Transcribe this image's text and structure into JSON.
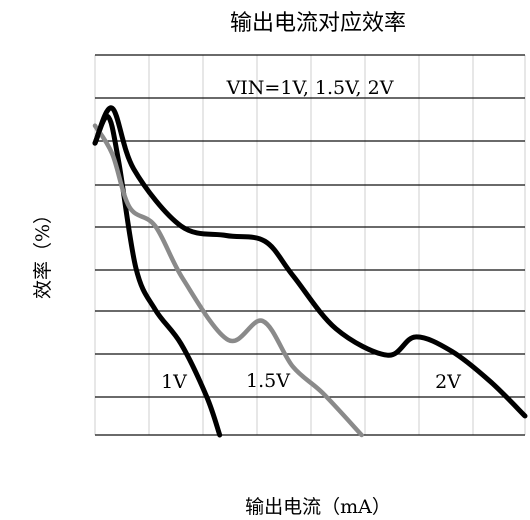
{
  "chart_data": {
    "type": "line",
    "title": "输出电流对应效率",
    "xlabel": "输出电流（mA）",
    "ylabel": "效率（%）",
    "legend_text": "VIN=1V, 1.5V, 2V",
    "grid": true,
    "series": [
      {
        "name": "1V",
        "color": "#000000",
        "points": [
          [
            0.0,
            0.768
          ],
          [
            0.03,
            0.838
          ],
          [
            0.055,
            0.72
          ],
          [
            0.095,
            0.44
          ],
          [
            0.14,
            0.33
          ],
          [
            0.2,
            0.24
          ],
          [
            0.26,
            0.1
          ],
          [
            0.29,
            0.0
          ]
        ]
      },
      {
        "name": "1.5V",
        "color": "#8a8a8a",
        "points": [
          [
            0.0,
            0.814
          ],
          [
            0.04,
            0.74
          ],
          [
            0.08,
            0.6
          ],
          [
            0.14,
            0.55
          ],
          [
            0.205,
            0.41
          ],
          [
            0.31,
            0.25
          ],
          [
            0.39,
            0.3
          ],
          [
            0.46,
            0.18
          ],
          [
            0.53,
            0.11
          ],
          [
            0.62,
            0.0
          ]
        ]
      },
      {
        "name": "2V",
        "color": "#000000",
        "points": [
          [
            0.0,
            0.768
          ],
          [
            0.04,
            0.86
          ],
          [
            0.09,
            0.7
          ],
          [
            0.2,
            0.55
          ],
          [
            0.305,
            0.525
          ],
          [
            0.395,
            0.51
          ],
          [
            0.46,
            0.42
          ],
          [
            0.56,
            0.28
          ],
          [
            0.68,
            0.21
          ],
          [
            0.745,
            0.258
          ],
          [
            0.83,
            0.22
          ],
          [
            0.92,
            0.14
          ],
          [
            1.0,
            0.05
          ]
        ]
      }
    ],
    "series_labels": [
      {
        "text": "1V",
        "series": "1V"
      },
      {
        "text": "1.5V",
        "series": "1.5V"
      },
      {
        "text": "2V",
        "series": "2V"
      }
    ],
    "x_grid_lines": 8,
    "y_grid_lines": 9
  }
}
